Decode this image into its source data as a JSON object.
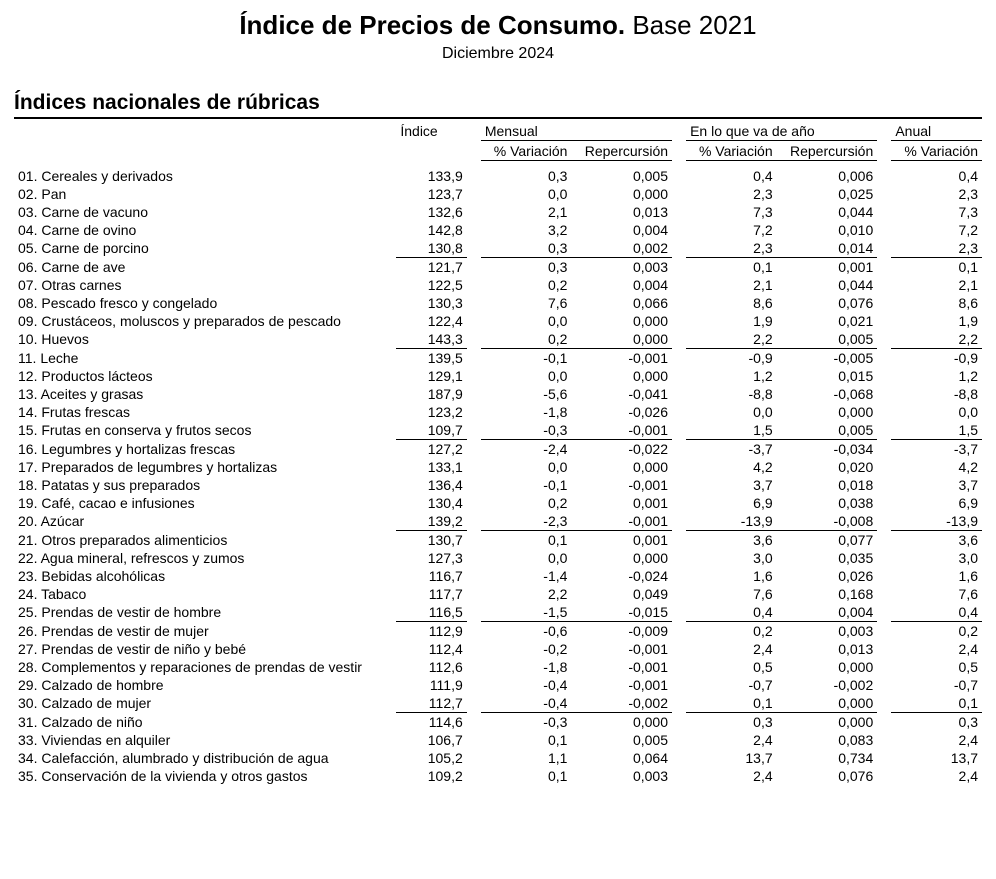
{
  "title_bold": "Índice de Precios de Consumo.",
  "title_rest": " Base 2021",
  "subtitle": "Diciembre 2024",
  "section": "Índices nacionales de rúbricas",
  "headers": {
    "indice": "Índice",
    "mensual": "Mensual",
    "ytd": "En lo que va de año",
    "anual": "Anual",
    "variacion": "% Variación",
    "repercusion": "Repercursión"
  },
  "group_separators_after": [
    5,
    10,
    15,
    20,
    25,
    30
  ],
  "rows": [
    {
      "label": "01. Cereales y derivados",
      "indice": "133,9",
      "m_var": "0,3",
      "m_rep": "0,005",
      "y_var": "0,4",
      "y_rep": "0,006",
      "a_var": "0,4"
    },
    {
      "label": "02. Pan",
      "indice": "123,7",
      "m_var": "0,0",
      "m_rep": "0,000",
      "y_var": "2,3",
      "y_rep": "0,025",
      "a_var": "2,3"
    },
    {
      "label": "03. Carne de vacuno",
      "indice": "132,6",
      "m_var": "2,1",
      "m_rep": "0,013",
      "y_var": "7,3",
      "y_rep": "0,044",
      "a_var": "7,3"
    },
    {
      "label": "04. Carne de ovino",
      "indice": "142,8",
      "m_var": "3,2",
      "m_rep": "0,004",
      "y_var": "7,2",
      "y_rep": "0,010",
      "a_var": "7,2"
    },
    {
      "label": "05. Carne de porcino",
      "indice": "130,8",
      "m_var": "0,3",
      "m_rep": "0,002",
      "y_var": "2,3",
      "y_rep": "0,014",
      "a_var": "2,3"
    },
    {
      "label": "06. Carne de ave",
      "indice": "121,7",
      "m_var": "0,3",
      "m_rep": "0,003",
      "y_var": "0,1",
      "y_rep": "0,001",
      "a_var": "0,1"
    },
    {
      "label": "07. Otras carnes",
      "indice": "122,5",
      "m_var": "0,2",
      "m_rep": "0,004",
      "y_var": "2,1",
      "y_rep": "0,044",
      "a_var": "2,1"
    },
    {
      "label": "08. Pescado fresco y congelado",
      "indice": "130,3",
      "m_var": "7,6",
      "m_rep": "0,066",
      "y_var": "8,6",
      "y_rep": "0,076",
      "a_var": "8,6"
    },
    {
      "label": "09. Crustáceos, moluscos y preparados de pescado",
      "indice": "122,4",
      "m_var": "0,0",
      "m_rep": "0,000",
      "y_var": "1,9",
      "y_rep": "0,021",
      "a_var": "1,9"
    },
    {
      "label": "10. Huevos",
      "indice": "143,3",
      "m_var": "0,2",
      "m_rep": "0,000",
      "y_var": "2,2",
      "y_rep": "0,005",
      "a_var": "2,2"
    },
    {
      "label": "11. Leche",
      "indice": "139,5",
      "m_var": "-0,1",
      "m_rep": "-0,001",
      "y_var": "-0,9",
      "y_rep": "-0,005",
      "a_var": "-0,9"
    },
    {
      "label": "12. Productos lácteos",
      "indice": "129,1",
      "m_var": "0,0",
      "m_rep": "0,000",
      "y_var": "1,2",
      "y_rep": "0,015",
      "a_var": "1,2"
    },
    {
      "label": "13. Aceites y grasas",
      "indice": "187,9",
      "m_var": "-5,6",
      "m_rep": "-0,041",
      "y_var": "-8,8",
      "y_rep": "-0,068",
      "a_var": "-8,8"
    },
    {
      "label": "14. Frutas frescas",
      "indice": "123,2",
      "m_var": "-1,8",
      "m_rep": "-0,026",
      "y_var": "0,0",
      "y_rep": "0,000",
      "a_var": "0,0"
    },
    {
      "label": "15. Frutas en conserva y frutos secos",
      "indice": "109,7",
      "m_var": "-0,3",
      "m_rep": "-0,001",
      "y_var": "1,5",
      "y_rep": "0,005",
      "a_var": "1,5"
    },
    {
      "label": "16. Legumbres y hortalizas frescas",
      "indice": "127,2",
      "m_var": "-2,4",
      "m_rep": "-0,022",
      "y_var": "-3,7",
      "y_rep": "-0,034",
      "a_var": "-3,7"
    },
    {
      "label": "17. Preparados de legumbres y hortalizas",
      "indice": "133,1",
      "m_var": "0,0",
      "m_rep": "0,000",
      "y_var": "4,2",
      "y_rep": "0,020",
      "a_var": "4,2"
    },
    {
      "label": "18. Patatas y sus preparados",
      "indice": "136,4",
      "m_var": "-0,1",
      "m_rep": "-0,001",
      "y_var": "3,7",
      "y_rep": "0,018",
      "a_var": "3,7"
    },
    {
      "label": "19. Café, cacao e infusiones",
      "indice": "130,4",
      "m_var": "0,2",
      "m_rep": "0,001",
      "y_var": "6,9",
      "y_rep": "0,038",
      "a_var": "6,9"
    },
    {
      "label": "20. Azúcar",
      "indice": "139,2",
      "m_var": "-2,3",
      "m_rep": "-0,001",
      "y_var": "-13,9",
      "y_rep": "-0,008",
      "a_var": "-13,9"
    },
    {
      "label": "21. Otros preparados alimenticios",
      "indice": "130,7",
      "m_var": "0,1",
      "m_rep": "0,001",
      "y_var": "3,6",
      "y_rep": "0,077",
      "a_var": "3,6"
    },
    {
      "label": "22. Agua mineral, refrescos y zumos",
      "indice": "127,3",
      "m_var": "0,0",
      "m_rep": "0,000",
      "y_var": "3,0",
      "y_rep": "0,035",
      "a_var": "3,0"
    },
    {
      "label": "23. Bebidas alcohólicas",
      "indice": "116,7",
      "m_var": "-1,4",
      "m_rep": "-0,024",
      "y_var": "1,6",
      "y_rep": "0,026",
      "a_var": "1,6"
    },
    {
      "label": "24. Tabaco",
      "indice": "117,7",
      "m_var": "2,2",
      "m_rep": "0,049",
      "y_var": "7,6",
      "y_rep": "0,168",
      "a_var": "7,6"
    },
    {
      "label": "25. Prendas de vestir de hombre",
      "indice": "116,5",
      "m_var": "-1,5",
      "m_rep": "-0,015",
      "y_var": "0,4",
      "y_rep": "0,004",
      "a_var": "0,4"
    },
    {
      "label": "26. Prendas de vestir de mujer",
      "indice": "112,9",
      "m_var": "-0,6",
      "m_rep": "-0,009",
      "y_var": "0,2",
      "y_rep": "0,003",
      "a_var": "0,2"
    },
    {
      "label": "27. Prendas de vestir de niño y bebé",
      "indice": "112,4",
      "m_var": "-0,2",
      "m_rep": "-0,001",
      "y_var": "2,4",
      "y_rep": "0,013",
      "a_var": "2,4"
    },
    {
      "label": "28. Complementos y reparaciones de prendas de vestir",
      "indice": "112,6",
      "m_var": "-1,8",
      "m_rep": "-0,001",
      "y_var": "0,5",
      "y_rep": "0,000",
      "a_var": "0,5"
    },
    {
      "label": "29. Calzado de hombre",
      "indice": "111,9",
      "m_var": "-0,4",
      "m_rep": "-0,001",
      "y_var": "-0,7",
      "y_rep": "-0,002",
      "a_var": "-0,7"
    },
    {
      "label": "30. Calzado de mujer",
      "indice": "112,7",
      "m_var": "-0,4",
      "m_rep": "-0,002",
      "y_var": "0,1",
      "y_rep": "0,000",
      "a_var": "0,1"
    },
    {
      "label": "31. Calzado de niño",
      "indice": "114,6",
      "m_var": "-0,3",
      "m_rep": "0,000",
      "y_var": "0,3",
      "y_rep": "0,000",
      "a_var": "0,3"
    },
    {
      "label": "33. Viviendas en alquiler",
      "indice": "106,7",
      "m_var": "0,1",
      "m_rep": "0,005",
      "y_var": "2,4",
      "y_rep": "0,083",
      "a_var": "2,4"
    },
    {
      "label": "34. Calefacción, alumbrado y distribución de agua",
      "indice": "105,2",
      "m_var": "1,1",
      "m_rep": "0,064",
      "y_var": "13,7",
      "y_rep": "0,734",
      "a_var": "13,7"
    },
    {
      "label": "35. Conservación de la vivienda y otros gastos",
      "indice": "109,2",
      "m_var": "0,1",
      "m_rep": "0,003",
      "y_var": "2,4",
      "y_rep": "0,076",
      "a_var": "2,4"
    }
  ]
}
